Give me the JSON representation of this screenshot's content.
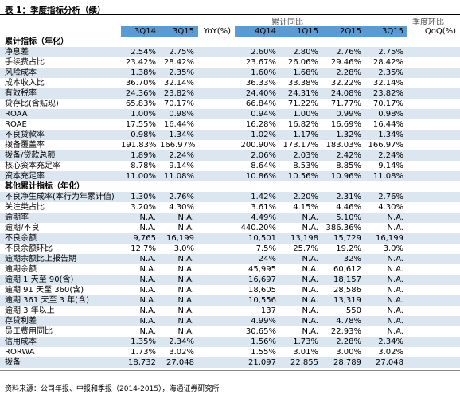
{
  "title": "表 1：季度指标分析（续）",
  "group_headers": {
    "cumulative_yoy": "累计同比",
    "quarterly_qoq": "季度环比"
  },
  "columns": [
    "3Q14",
    "3Q15",
    "YoY(%)",
    "4Q14",
    "1Q15",
    "2Q15",
    "3Q15",
    "QoQ(%)"
  ],
  "rows": [
    {
      "label": "累计指标（年化）",
      "values": [
        "",
        "",
        "",
        "",
        "",
        "",
        "",
        ""
      ],
      "section": true
    },
    {
      "label": "净息差",
      "values": [
        "2.54%",
        "2.75%",
        "",
        "2.60%",
        "2.80%",
        "2.76%",
        "2.75%",
        ""
      ]
    },
    {
      "label": "手续费占比",
      "values": [
        "23.42%",
        "28.42%",
        "",
        "23.67%",
        "26.06%",
        "29.46%",
        "28.42%",
        ""
      ]
    },
    {
      "label": "风险成本",
      "values": [
        "1.38%",
        "2.35%",
        "",
        "1.60%",
        "1.68%",
        "2.28%",
        "2.35%",
        ""
      ]
    },
    {
      "label": "成本收入比",
      "values": [
        "36.70%",
        "32.14%",
        "",
        "36.33%",
        "33.38%",
        "32.22%",
        "32.14%",
        ""
      ]
    },
    {
      "label": "有效税率",
      "values": [
        "24.36%",
        "23.82%",
        "",
        "24.40%",
        "24.31%",
        "24.08%",
        "23.82%",
        ""
      ]
    },
    {
      "label": "贷存比(含贴现)",
      "values": [
        "65.83%",
        "70.17%",
        "",
        "66.84%",
        "71.22%",
        "71.77%",
        "70.17%",
        ""
      ]
    },
    {
      "label": "ROAA",
      "values": [
        "1.00%",
        "0.98%",
        "",
        "0.94%",
        "1.00%",
        "0.99%",
        "0.98%",
        ""
      ]
    },
    {
      "label": "ROAE",
      "values": [
        "17.55%",
        "16.44%",
        "",
        "16.28%",
        "16.82%",
        "16.69%",
        "16.44%",
        ""
      ]
    },
    {
      "label": "不良贷款率",
      "values": [
        "0.98%",
        "1.34%",
        "",
        "1.02%",
        "1.17%",
        "1.32%",
        "1.34%",
        ""
      ]
    },
    {
      "label": "拨备覆盖率",
      "values": [
        "191.83%",
        "166.97%",
        "",
        "200.90%",
        "173.17%",
        "183.03%",
        "166.97%",
        ""
      ]
    },
    {
      "label": "拨备/贷款总额",
      "values": [
        "1.89%",
        "2.24%",
        "",
        "2.06%",
        "2.03%",
        "2.42%",
        "2.24%",
        ""
      ]
    },
    {
      "label": "核心资本充足率",
      "values": [
        "8.78%",
        "9.14%",
        "",
        "8.64%",
        "8.53%",
        "8.85%",
        "9.14%",
        ""
      ]
    },
    {
      "label": "资本充足率",
      "values": [
        "11.00%",
        "11.08%",
        "",
        "10.86%",
        "10.56%",
        "10.96%",
        "11.08%",
        ""
      ]
    },
    {
      "label": "其他累计指标（年化）",
      "values": [
        "",
        "",
        "",
        "",
        "",
        "",
        "",
        ""
      ],
      "section": true
    },
    {
      "label": "不良净生成率(本行为年累计值)",
      "values": [
        "1.30%",
        "2.76%",
        "",
        "1.42%",
        "2.20%",
        "2.31%",
        "2.76%",
        ""
      ]
    },
    {
      "label": "关注类占比",
      "values": [
        "3.20%",
        "4.30%",
        "",
        "3.61%",
        "4.15%",
        "4.46%",
        "4.30%",
        ""
      ]
    },
    {
      "label": "逾期率",
      "values": [
        "N.A.",
        "N.A.",
        "",
        "4.49%",
        "N.A.",
        "5.10%",
        "N.A.",
        ""
      ]
    },
    {
      "label": "逾期/不良",
      "values": [
        "N.A.",
        "N.A.",
        "",
        "440.20%",
        "N.A.",
        "386.36%",
        "N.A.",
        ""
      ]
    },
    {
      "label": "不良余额",
      "values": [
        "9,765",
        "16,199",
        "",
        "10,501",
        "13,198",
        "15,729",
        "16,199",
        ""
      ]
    },
    {
      "label": "不良余额环比",
      "values": [
        "12.7%",
        "3.0%",
        "",
        "7.5%",
        "25.7%",
        "19.2%",
        "3.0%",
        ""
      ]
    },
    {
      "label": "逾期余额比上报告期",
      "values": [
        "N.A.",
        "N.A.",
        "",
        "24%",
        "N.A.",
        "32%",
        "N.A.",
        ""
      ]
    },
    {
      "label": "逾期余额",
      "values": [
        "N.A.",
        "N.A.",
        "",
        "45,995",
        "N.A.",
        "60,612",
        "N.A.",
        ""
      ]
    },
    {
      "label": "逾期 1 天至 90(含)",
      "values": [
        "N.A.",
        "N.A.",
        "",
        "16,697",
        "N.A.",
        "18,157",
        "N.A.",
        ""
      ]
    },
    {
      "label": "逾期 91 天至 360(含)",
      "values": [
        "N.A.",
        "N.A.",
        "",
        "18,605",
        "N.A.",
        "28,586",
        "N.A.",
        ""
      ]
    },
    {
      "label": "逾期 361 天至 3 年(含)",
      "values": [
        "N.A.",
        "N.A.",
        "",
        "10,556",
        "N.A.",
        "13,319",
        "N.A.",
        ""
      ]
    },
    {
      "label": "逾期 3 年以上",
      "values": [
        "N.A.",
        "N.A.",
        "",
        "137",
        "N.A.",
        "550",
        "N.A.",
        ""
      ]
    },
    {
      "label": "存贷利差",
      "values": [
        "N.A.",
        "N.A.",
        "",
        "4.99%",
        "N.A.",
        "4.78%",
        "N.A.",
        ""
      ]
    },
    {
      "label": "员工费用同比",
      "values": [
        "N.A.",
        "N.A.",
        "",
        "30.65%",
        "N.A.",
        "22.93%",
        "N.A.",
        ""
      ]
    },
    {
      "label": "信用成本",
      "values": [
        "1.35%",
        "2.34%",
        "",
        "1.56%",
        "1.73%",
        "2.28%",
        "2.34%",
        ""
      ]
    },
    {
      "label": "RORWA",
      "values": [
        "1.73%",
        "3.02%",
        "",
        "1.55%",
        "3.01%",
        "3.00%",
        "3.02%",
        ""
      ]
    },
    {
      "label": "拨备",
      "values": [
        "18,732",
        "27,048",
        "",
        "21,097",
        "22,855",
        "28,789",
        "27,048",
        ""
      ]
    }
  ],
  "footer": "资料来源：公司年报、中报和季报（2014-2015），海通证券研究所"
}
